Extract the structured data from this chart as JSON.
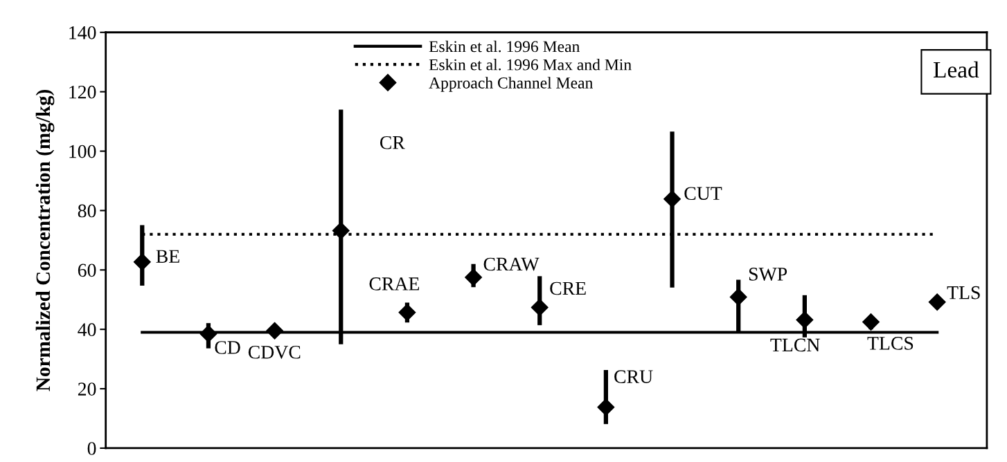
{
  "chart_data": {
    "type": "scatter",
    "ylabel": "Normalized Concentration (mg/kg)",
    "categories": [
      null,
      null,
      null,
      null,
      null,
      null,
      null,
      null,
      null,
      null,
      null,
      null,
      null
    ],
    "series": [
      {
        "name": "Approach Channel Mean",
        "color": "#000000",
        "values": [
          62.7,
          38.5,
          39.5,
          73.2,
          45.7,
          57.5,
          47.4,
          13.8,
          83.9,
          50.9,
          43.2,
          42.5,
          49.2
        ],
        "errors": [
          [
            54.7,
            75.1
          ],
          [
            33.6,
            42.1
          ],
          null,
          [
            35,
            114
          ],
          [
            42.3,
            49
          ],
          [
            54.2,
            62
          ],
          [
            41.4,
            57.9
          ],
          [
            8.1,
            26.3
          ],
          [
            54.1,
            106.6
          ],
          [
            39.1,
            56.7
          ],
          [
            37.3,
            51.5
          ],
          [
            40,
            42.5
          ],
          null
        ]
      }
    ],
    "ref_lines": [
      {
        "axis": "y",
        "value": 39,
        "label": "Eskin et al. 1996 Mean",
        "color": "#000000",
        "line_style": "solid"
      },
      {
        "axis": "y",
        "value": 72,
        "label": "Eskin et al. 1996 Max and Min",
        "color": "#000000",
        "line_style": "dotted"
      }
    ],
    "annotations": [
      "BE",
      "CD",
      "CDVC",
      "CR",
      "CRAE",
      "CRAW",
      "CRE",
      "CRU",
      "CUT",
      "SWP",
      "TLCN",
      "TLCS",
      "TLS",
      "Lead"
    ],
    "ylim": [
      0,
      140
    ],
    "yticks": [
      0,
      20,
      40,
      60,
      80,
      100,
      120,
      140
    ],
    "marker": "diamond",
    "legend": "top",
    "grid": false,
    "tick_labels": "y"
  }
}
